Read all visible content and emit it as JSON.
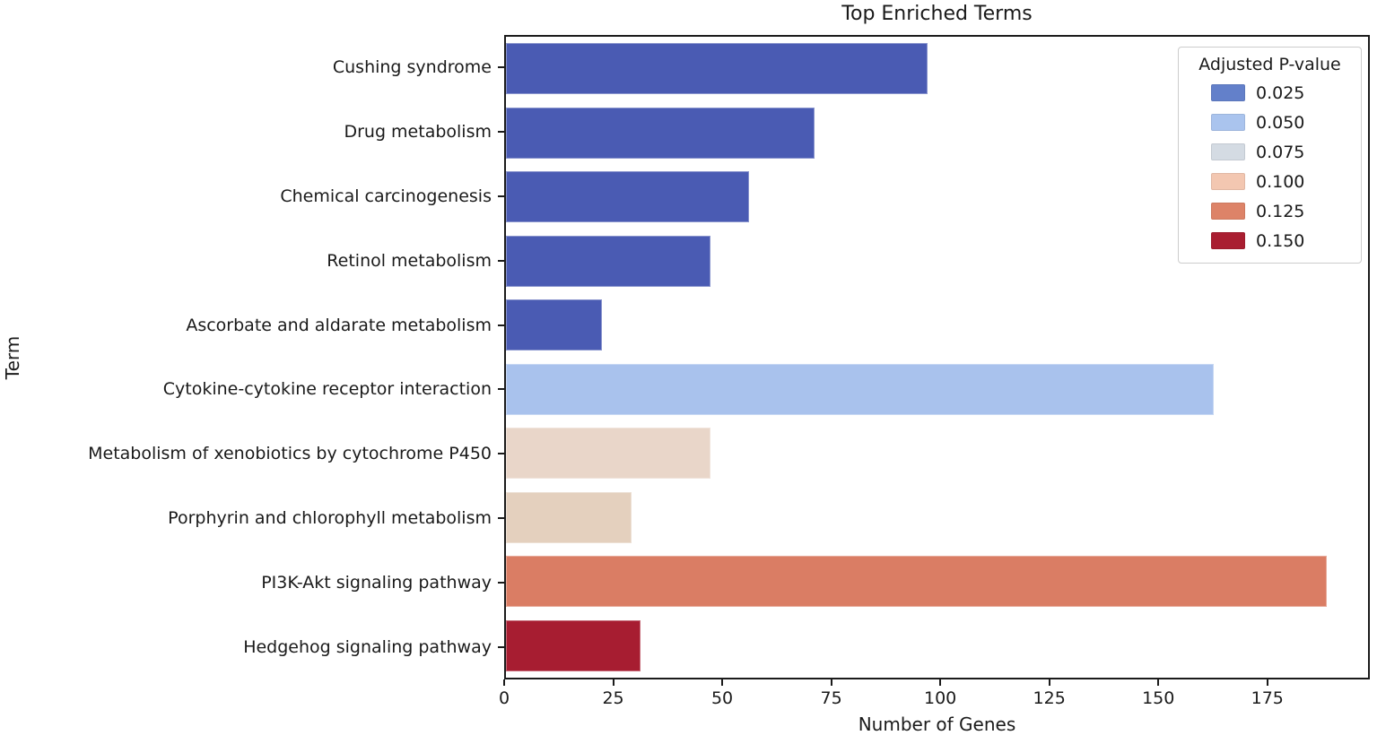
{
  "chart_data": {
    "type": "bar",
    "orientation": "horizontal",
    "title": "Top Enriched Terms",
    "xlabel": "Number of Genes",
    "ylabel": "Term",
    "xlim": [
      0,
      198.5
    ],
    "x_ticks": [
      0,
      25,
      50,
      75,
      100,
      125,
      150,
      175
    ],
    "grid": false,
    "categories": [
      "Cushing syndrome",
      "Drug metabolism",
      "Chemical carcinogenesis",
      "Retinol metabolism",
      "Ascorbate and aldarate metabolism",
      "Cytokine-cytokine receptor interaction",
      "Metabolism of xenobiotics by cytochrome P450",
      "Porphyrin and chlorophyll metabolism",
      "PI3K-Akt signaling pathway",
      "Hedgehog signaling pathway"
    ],
    "values": [
      97,
      71,
      56,
      47,
      22,
      163,
      47,
      29,
      189,
      31
    ],
    "bar_colors": [
      "#4A5BB3",
      "#4A5BB3",
      "#4A5BB3",
      "#4A5BB3",
      "#4A5BB3",
      "#A9C2ED",
      "#E9D6C9",
      "#E4D0BE",
      "#DA7D64",
      "#A71D31"
    ],
    "legend": {
      "title": "Adjusted P-value",
      "position": "upper-right",
      "entries": [
        {
          "label": "0.025",
          "color": "#6380CA"
        },
        {
          "label": "0.050",
          "color": "#AAC4EE"
        },
        {
          "label": "0.075",
          "color": "#D4DBE3"
        },
        {
          "label": "0.100",
          "color": "#F3C7B1"
        },
        {
          "label": "0.125",
          "color": "#DD8368"
        },
        {
          "label": "0.150",
          "color": "#A91E31"
        }
      ]
    }
  }
}
